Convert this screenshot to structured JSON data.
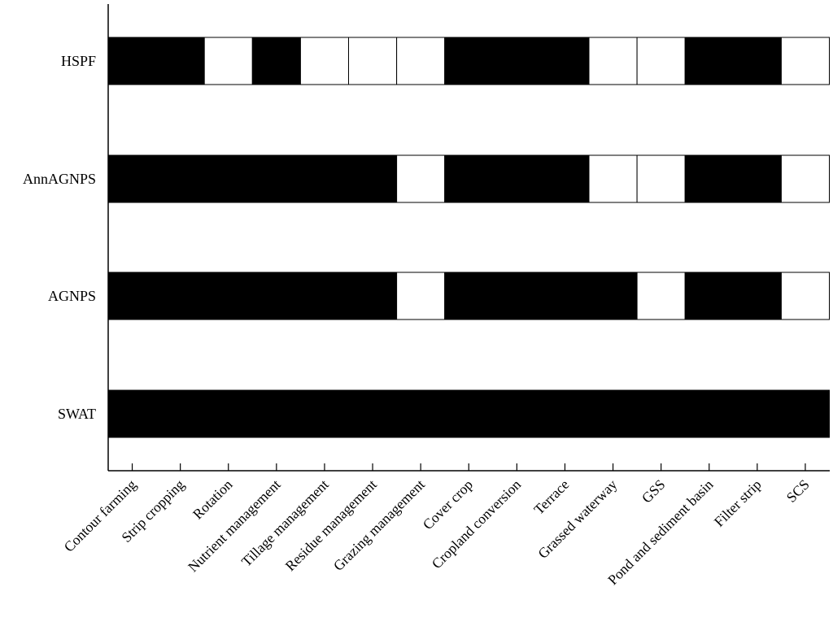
{
  "chart_data": {
    "type": "table",
    "categories": [
      "Contour farming",
      "Strip cropping",
      "Rotation",
      "Nutrient management",
      "Tillage  management",
      "Residue management",
      "Grazing management",
      "Cover crop",
      "Cropland conversion",
      "Terrace",
      "Grassed waterway",
      "GSS",
      "Pond and sediment basin",
      "Filter strip",
      "SCS"
    ],
    "rows": [
      {
        "name": "HSPF",
        "values": [
          1,
          1,
          0,
          1,
          0,
          0,
          0,
          1,
          1,
          1,
          0,
          0,
          1,
          1,
          0
        ]
      },
      {
        "name": "AnnAGNPS",
        "values": [
          1,
          1,
          1,
          1,
          1,
          1,
          0,
          1,
          1,
          1,
          0,
          0,
          1,
          1,
          0
        ]
      },
      {
        "name": "AGNPS",
        "values": [
          1,
          1,
          1,
          1,
          1,
          1,
          0,
          1,
          1,
          1,
          1,
          0,
          1,
          1,
          0
        ]
      },
      {
        "name": "SWAT",
        "values": [
          1,
          1,
          1,
          1,
          1,
          1,
          1,
          1,
          1,
          1,
          1,
          1,
          1,
          1,
          1
        ]
      }
    ],
    "legend": "none",
    "grid": false,
    "colors": {
      "supported": "#000000",
      "not_supported": "#ffffff"
    }
  }
}
